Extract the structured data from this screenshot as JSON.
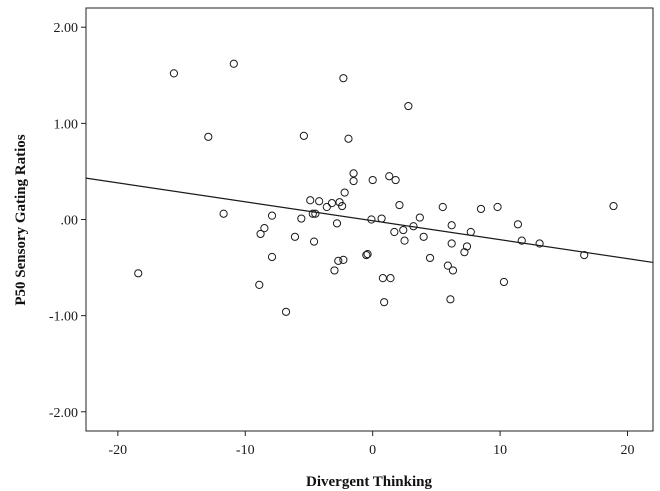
{
  "chart_data": {
    "type": "scatter",
    "title": "",
    "xlabel": "Divergent Thinking",
    "ylabel": "P50 Sensory Gating Ratios",
    "xlim": [
      -22.5,
      22
    ],
    "ylim": [
      -2.2,
      2.2
    ],
    "x_ticks": [
      -20,
      -10,
      0,
      10,
      20
    ],
    "x_tick_labels": [
      "-20",
      "-10",
      "0",
      "10",
      "20"
    ],
    "y_ticks": [
      2,
      1,
      0,
      -1,
      -2
    ],
    "y_tick_labels": [
      "2.00",
      "1.00",
      ".00",
      "-1.00",
      "-2.00"
    ],
    "grid": false,
    "fit_line": {
      "slope": -0.0197,
      "intercept": -0.013
    },
    "points": [
      {
        "x": -18.4,
        "y": -0.56
      },
      {
        "x": -15.6,
        "y": 1.52
      },
      {
        "x": -12.9,
        "y": 0.86
      },
      {
        "x": -11.7,
        "y": 0.06
      },
      {
        "x": -10.9,
        "y": 1.62
      },
      {
        "x": -8.9,
        "y": -0.68
      },
      {
        "x": -8.8,
        "y": -0.15
      },
      {
        "x": -8.5,
        "y": -0.09
      },
      {
        "x": -7.9,
        "y": 0.04
      },
      {
        "x": -7.9,
        "y": -0.39
      },
      {
        "x": -6.8,
        "y": -0.96
      },
      {
        "x": -6.1,
        "y": -0.18
      },
      {
        "x": -5.6,
        "y": 0.01
      },
      {
        "x": -5.4,
        "y": 0.87
      },
      {
        "x": -4.9,
        "y": 0.2
      },
      {
        "x": -4.7,
        "y": 0.06
      },
      {
        "x": -4.5,
        "y": 0.06
      },
      {
        "x": -4.6,
        "y": -0.23
      },
      {
        "x": -4.2,
        "y": 0.19
      },
      {
        "x": -3.6,
        "y": 0.13
      },
      {
        "x": -3.2,
        "y": 0.17
      },
      {
        "x": -3.0,
        "y": -0.53
      },
      {
        "x": -2.8,
        "y": -0.04
      },
      {
        "x": -2.7,
        "y": -0.43
      },
      {
        "x": -2.6,
        "y": 0.18
      },
      {
        "x": -2.4,
        "y": 0.14
      },
      {
        "x": -2.3,
        "y": 1.47
      },
      {
        "x": -2.3,
        "y": -0.42
      },
      {
        "x": -2.2,
        "y": 0.28
      },
      {
        "x": -1.9,
        "y": 0.84
      },
      {
        "x": -1.5,
        "y": 0.4
      },
      {
        "x": -1.5,
        "y": 0.48
      },
      {
        "x": -0.5,
        "y": -0.37
      },
      {
        "x": -0.4,
        "y": -0.36
      },
      {
        "x": -0.1,
        "y": 0.0
      },
      {
        "x": 0.0,
        "y": 0.41
      },
      {
        "x": 0.7,
        "y": 0.01
      },
      {
        "x": 0.8,
        "y": -0.61
      },
      {
        "x": 0.9,
        "y": -0.86
      },
      {
        "x": 1.3,
        "y": 0.45
      },
      {
        "x": 1.4,
        "y": -0.61
      },
      {
        "x": 1.7,
        "y": -0.13
      },
      {
        "x": 1.8,
        "y": 0.41
      },
      {
        "x": 2.1,
        "y": 0.15
      },
      {
        "x": 2.4,
        "y": -0.11
      },
      {
        "x": 2.5,
        "y": -0.22
      },
      {
        "x": 2.8,
        "y": 1.18
      },
      {
        "x": 3.2,
        "y": -0.07
      },
      {
        "x": 3.7,
        "y": 0.02
      },
      {
        "x": 4.0,
        "y": -0.18
      },
      {
        "x": 4.5,
        "y": -0.4
      },
      {
        "x": 5.5,
        "y": 0.13
      },
      {
        "x": 5.9,
        "y": -0.48
      },
      {
        "x": 6.1,
        "y": -0.83
      },
      {
        "x": 6.2,
        "y": -0.06
      },
      {
        "x": 6.2,
        "y": -0.25
      },
      {
        "x": 6.3,
        "y": -0.53
      },
      {
        "x": 7.2,
        "y": -0.34
      },
      {
        "x": 7.4,
        "y": -0.28
      },
      {
        "x": 7.7,
        "y": -0.13
      },
      {
        "x": 8.5,
        "y": 0.11
      },
      {
        "x": 9.8,
        "y": 0.13
      },
      {
        "x": 10.3,
        "y": -0.65
      },
      {
        "x": 11.4,
        "y": -0.05
      },
      {
        "x": 11.7,
        "y": -0.22
      },
      {
        "x": 13.1,
        "y": -0.25
      },
      {
        "x": 16.6,
        "y": -0.37
      },
      {
        "x": 18.9,
        "y": 0.14
      }
    ]
  }
}
